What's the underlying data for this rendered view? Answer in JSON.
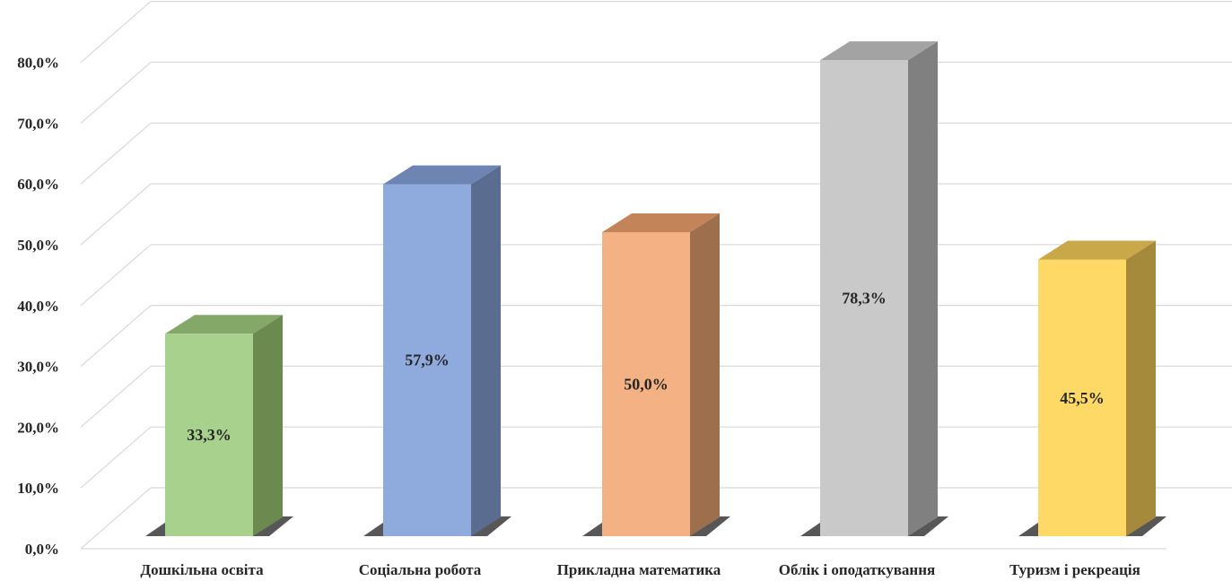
{
  "chart_data": {
    "type": "bar",
    "title": "",
    "xlabel": "",
    "ylabel": "",
    "ylim": [
      0,
      80
    ],
    "yticks": [
      "0,0%",
      "10,0%",
      "20,0%",
      "30,0%",
      "40,0%",
      "50,0%",
      "60,0%",
      "70,0%",
      "80,0%"
    ],
    "categories": [
      "Дошкільна освіта",
      "Соціальна робота",
      "Прикладна математика",
      "Облік і оподаткування",
      "Туризм і рекреація"
    ],
    "values": [
      33.3,
      57.9,
      50.0,
      78.3,
      45.5
    ],
    "data_labels": [
      "33,3%",
      "57,9%",
      "50,0%",
      "78,3%",
      "45,5%"
    ],
    "colors": [
      {
        "front": "#a9d18e",
        "side": "#6a8a50",
        "top": "#84a868"
      },
      {
        "front": "#8faadc",
        "side": "#5a6d91",
        "top": "#6e85b3"
      },
      {
        "front": "#f4b183",
        "side": "#9e6f4d",
        "top": "#c4845a"
      },
      {
        "front": "#c9c9c9",
        "side": "#808080",
        "top": "#a3a3a3"
      },
      {
        "front": "#ffd966",
        "side": "#a48a3a",
        "top": "#c9a84a"
      }
    ],
    "grid": true,
    "legend": "none",
    "style": "3d-column"
  }
}
